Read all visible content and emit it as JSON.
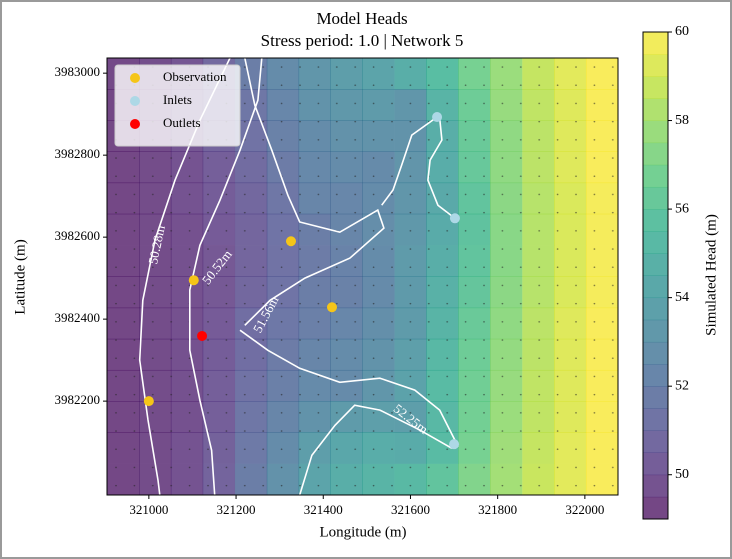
{
  "chart_data": {
    "type": "heatmap",
    "title": "Model Heads",
    "subtitle": "Stress period: 1.0 | Network 5",
    "x_label": "Longitude (m)",
    "y_label": "Latitude (m)",
    "xlim": [
      320904,
      322076
    ],
    "ylim": [
      3981971,
      3983037
    ],
    "xticks": [
      321000,
      321200,
      321400,
      321600,
      321800,
      322000
    ],
    "yticks": [
      3982200,
      3982400,
      3982600,
      3982800,
      3983000
    ],
    "x": [
      320941,
      321014,
      321087,
      321160,
      321234,
      321307,
      321380,
      321453,
      321526,
      321600,
      321673,
      321746,
      321819,
      321893,
      321966,
      322039
    ],
    "y": [
      3982999,
      3982923,
      3982847,
      3982771,
      3982695,
      3982619,
      3982542,
      3982466,
      3982390,
      3982314,
      3982238,
      3982162,
      3982086,
      3982009
    ],
    "z": [
      [
        49.4,
        49.6,
        49.9,
        50.8,
        51.8,
        52.6,
        53.2,
        53.6,
        54.0,
        54.6,
        55.6,
        56.8,
        57.8,
        58.7,
        59.4,
        59.9
      ],
      [
        49.3,
        49.6,
        50.0,
        50.6,
        51.4,
        52.3,
        53.0,
        53.3,
        53.5,
        53.2,
        55.0,
        56.5,
        57.7,
        58.6,
        59.3,
        59.9
      ],
      [
        49.3,
        49.5,
        49.9,
        50.5,
        51.2,
        52.0,
        52.6,
        52.9,
        53.0,
        53.0,
        54.6,
        56.3,
        57.5,
        58.5,
        59.3,
        59.9
      ],
      [
        49.3,
        49.5,
        49.8,
        50.3,
        50.9,
        51.7,
        52.4,
        52.6,
        52.5,
        53.1,
        54.5,
        56.2,
        57.5,
        58.5,
        59.3,
        59.9
      ],
      [
        49.3,
        49.5,
        49.8,
        50.2,
        50.7,
        51.4,
        52.2,
        52.3,
        52.6,
        53.2,
        54.3,
        56.0,
        57.4,
        58.4,
        59.2,
        59.8
      ],
      [
        49.3,
        49.5,
        49.7,
        50.1,
        50.6,
        51.3,
        51.8,
        52.2,
        52.7,
        53.3,
        54.4,
        55.9,
        57.3,
        58.4,
        59.2,
        59.8
      ],
      [
        49.3,
        49.5,
        49.7,
        50.0,
        50.6,
        51.2,
        51.7,
        52.1,
        52.6,
        53.5,
        54.6,
        56.0,
        57.3,
        58.4,
        59.2,
        59.8
      ],
      [
        49.3,
        49.5,
        49.7,
        50.0,
        50.7,
        51.3,
        51.8,
        52.0,
        52.5,
        53.4,
        54.8,
        56.1,
        57.4,
        58.4,
        59.2,
        59.8
      ],
      [
        49.3,
        49.5,
        49.7,
        50.1,
        51.0,
        51.5,
        51.9,
        52.3,
        52.8,
        53.5,
        55.0,
        56.3,
        57.5,
        58.5,
        59.3,
        59.9
      ],
      [
        49.3,
        49.5,
        49.7,
        50.2,
        51.0,
        51.7,
        52.2,
        52.6,
        53.0,
        53.7,
        55.2,
        56.5,
        57.6,
        58.5,
        59.3,
        59.9
      ],
      [
        49.3,
        49.5,
        49.7,
        50.3,
        51.2,
        51.9,
        52.5,
        52.5,
        53.2,
        53.9,
        55.4,
        56.6,
        57.7,
        58.6,
        59.3,
        59.9
      ],
      [
        49.3,
        49.5,
        49.7,
        50.3,
        51.4,
        52.2,
        53.0,
        53.5,
        53.7,
        53.6,
        55.2,
        56.7,
        57.8,
        58.6,
        59.3,
        59.9
      ],
      [
        49.3,
        49.5,
        49.8,
        50.4,
        51.6,
        52.6,
        53.6,
        54.2,
        54.5,
        54.4,
        55.4,
        56.8,
        57.9,
        58.7,
        59.4,
        59.9
      ],
      [
        49.3,
        49.5,
        49.8,
        50.5,
        51.8,
        52.9,
        54.0,
        54.6,
        55.0,
        55.3,
        56.0,
        57.1,
        58.0,
        58.8,
        59.4,
        59.9
      ]
    ],
    "colormap": "viridis",
    "alpha": 0.75,
    "colorbar": {
      "label": "Simulated Head (m)",
      "lim": [
        49,
        60
      ],
      "ticks": [
        50,
        52,
        54,
        56,
        58,
        60
      ]
    },
    "contours": [
      {
        "label": "50.28m",
        "color": "#ffffff",
        "x": [
          321186,
          321117,
          321060,
          321014,
          320986,
          320979,
          320998,
          321021,
          321025
        ],
        "y": [
          3983037,
          3982885,
          3982739,
          3982593,
          3982446,
          3982300,
          3982154,
          3982007,
          3981971
        ]
      },
      {
        "label": "50.52m",
        "color": "#ffffff",
        "x": [
          321259,
          321250,
          321209,
          321163,
          321117,
          321094,
          321094,
          321117,
          321144,
          321151
        ],
        "y": [
          3983037,
          3982934,
          3982812,
          3982690,
          3982580,
          3982471,
          3982324,
          3982202,
          3982080,
          3981971
        ]
      },
      {
        "label": "51.56m",
        "color": "#ffffff",
        "x": [
          321220,
          321243,
          321282,
          321319,
          321346,
          321438,
          321525,
          321539,
          321461,
          321358,
          321278,
          321220,
          null,
          321661,
          321603,
          321580,
          321560,
          321534,
          null,
          321702,
          321663,
          321640,
          321645,
          321672,
          321667
        ],
        "y": [
          3983037,
          3982922,
          3982812,
          3982702,
          3982637,
          3982612,
          3982666,
          3982622,
          3982549,
          3982500,
          3982446,
          3982385,
          null,
          3982893,
          3982849,
          3982776,
          3982715,
          3982678,
          null,
          3982646,
          3982678,
          3982739,
          3982788,
          3982837,
          3982890
        ]
      },
      {
        "label": "52.25m",
        "color": "#ffffff",
        "x": [
          321209,
          321273,
          321346,
          321438,
          321530,
          321610,
          321667,
          321702,
          321709,
          null,
          321346,
          321374,
          321427,
          321472,
          321530,
          321622,
          321695
        ],
        "y": [
          3982373,
          3982324,
          3982280,
          3982246,
          3982256,
          3982227,
          3982178,
          3982105,
          3982088,
          null,
          3981971,
          3982068,
          3982141,
          3982190,
          3982178,
          3982129,
          3982085
        ]
      }
    ],
    "series": [
      {
        "name": "Observation",
        "color": "#f5c518",
        "x": [
          321000,
          321103,
          321326,
          321420
        ],
        "y": [
          3982200,
          3982495,
          3982590,
          3982429
        ]
      },
      {
        "name": "Inlets",
        "color": "#add8e6",
        "x": [
          321661,
          321702,
          321700
        ],
        "y": [
          3982893,
          3982646,
          3982095
        ]
      },
      {
        "name": "Outlets",
        "color": "#ff0000",
        "x": [
          321122
        ],
        "y": [
          3982359
        ]
      }
    ],
    "legend": "upper left"
  }
}
